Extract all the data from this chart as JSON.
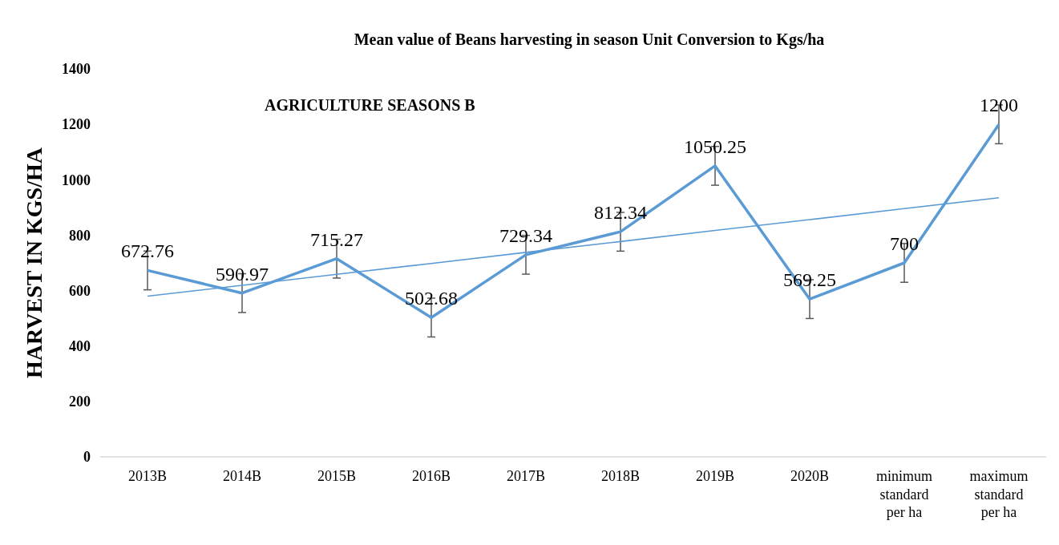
{
  "chart_data": {
    "type": "line",
    "title": "Mean value of Beans harvesting in season Unit Conversion to Kgs/ha",
    "ylabel": "HARVEST IN KGS/HA",
    "annotations": [
      "AGRICULTURE SEASONS B"
    ],
    "categories": [
      "2013B",
      "2014B",
      "2015B",
      "2016B",
      "2017B",
      "2018B",
      "2019B",
      "2020B",
      "minimum standard per ha",
      "maximum standard per ha"
    ],
    "series": [
      {
        "color": "#5b9bd5",
        "values": [
          672.76,
          590.97,
          715.27,
          502.68,
          729.34,
          812.34,
          1050.25,
          569.25,
          700,
          1200
        ],
        "errors": [
          70,
          70,
          70,
          70,
          70,
          70,
          70,
          70,
          70,
          70
        ],
        "data_labels": true
      },
      {
        "color": "#5b9bd5",
        "values": [
          580,
          619,
          659,
          698,
          738,
          777,
          817,
          856,
          896,
          935
        ]
      }
    ],
    "ylim": [
      0,
      1400
    ],
    "yticks": [
      0,
      200,
      400,
      600,
      800,
      1000,
      1200,
      1400
    ],
    "grid": false,
    "marker": "none"
  }
}
